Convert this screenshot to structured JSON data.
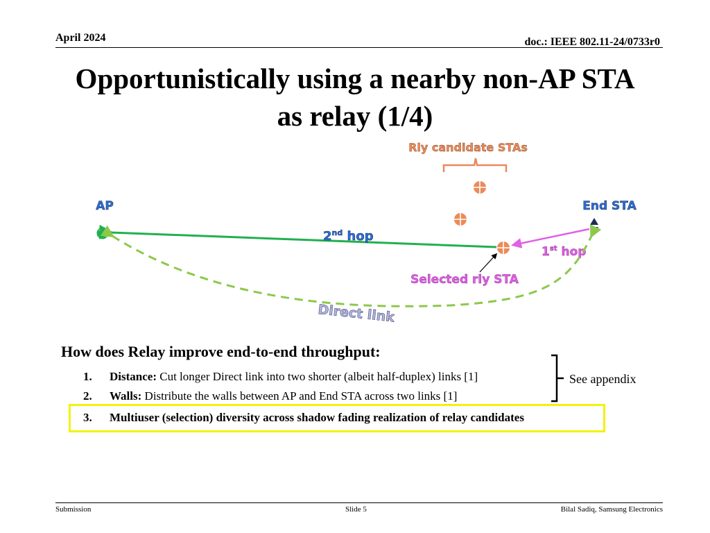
{
  "header": {
    "date": "April 2024",
    "doc_id": "doc.: IEEE 802.11-24/0733r0"
  },
  "title": {
    "line1": "Opportunistically using a nearby non-AP STA",
    "line2": "as relay (1/4)"
  },
  "diagram": {
    "relay_candidates_label": "Rly candidate STAs",
    "ap_label": "AP",
    "end_sta_label": "End STA",
    "second_hop_base": "2",
    "second_hop_sup": "nd",
    "second_hop_word": " hop",
    "first_hop_base": "1",
    "first_hop_sup": "st",
    "first_hop_word": " hop",
    "selected_relay_label": "Selected rly STA",
    "direct_link_label": "Direct link",
    "colors": {
      "orange": "#ec8a5a",
      "green": "#20b04f",
      "dashed_green": "#8cc84b",
      "magenta": "#e060e6",
      "blue": "#2a6fd6",
      "navy": "#1f2a56"
    }
  },
  "content": {
    "question": "How does Relay improve end-to-end throughput:",
    "items": [
      {
        "num": "1.",
        "bold": "Distance:",
        "text": " Cut longer Direct link into two shorter (albeit half-duplex) links [1]"
      },
      {
        "num": "2.",
        "bold": "Walls:",
        "text": " Distribute the walls between AP and End STA across two links [1]"
      },
      {
        "num": "3.",
        "bold": "",
        "text": "Multiuser (selection) diversity across shadow fading realization of relay candidates"
      }
    ],
    "appendix_note": "See appendix"
  },
  "footer": {
    "left": "Submission",
    "center": "Slide 5",
    "right": "Bilal Sadiq, Samsung Electronics"
  }
}
